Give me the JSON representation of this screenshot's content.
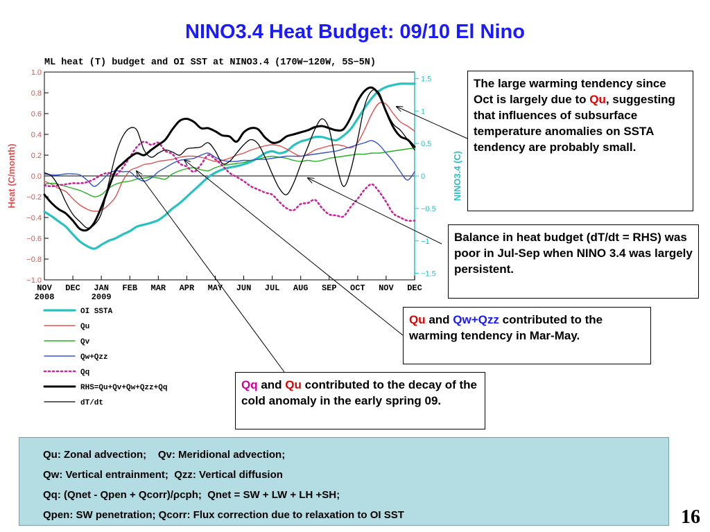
{
  "slide": {
    "title": "NINO3.4 Heat Budget: 09/10 El Nino",
    "page_number": "16"
  },
  "annotations": {
    "box1": {
      "pre": "The large warming tendency since Oct is largely due to ",
      "qu": "Qu",
      "post": ", suggesting that influences of subsurface temperature anomalies on SSTA tendency are probably small."
    },
    "box2": "Balance in heat budget (dT/dt = RHS) was poor in Jul-Sep when NINO 3.4 was largely persistent.",
    "box3": {
      "qu": "Qu",
      "and": " and ",
      "qw": "Qw+Qzz",
      "post": " contributed to the warming tendency in Mar-May."
    },
    "box4": {
      "qq": "Qq",
      "and": " and ",
      "qu": "Qu",
      "post": " contributed to the decay of the cold anomaly in the early spring 09."
    }
  },
  "definitions": [
    "Qu: Zonal advection;    Qv: Meridional advection;",
    "Qw: Vertical entrainment;  Qzz: Vertical diffusion",
    "Qq: (Qnet - Qpen + Qcorr)/ρcph;  Qnet = SW + LW + LH +SH;",
    "Qpen: SW penetration; Qcorr: Flux correction due to relaxation to OI SST"
  ],
  "colors": {
    "oi_ssta": "#26c2c2",
    "qu": "#e05050",
    "qv": "#22b022",
    "qwqzz": "#3355cc",
    "qq": "#cc2299",
    "rhs": "#000000",
    "dtdt": "#000000",
    "title_blue": "#1a1aff",
    "defs_bg": "#b3dde3"
  },
  "chart_data": {
    "type": "line",
    "title": "ML heat (T) budget and OI SST at NINO3.4 (170W−120W, 5S−5N)",
    "ylabel": "Heat (C/month)",
    "y2label": "NINO3.4 (C)",
    "ylim": [
      -1.0,
      1.0
    ],
    "y2lim": [
      -1.6,
      1.6
    ],
    "yticks": [
      "1.0",
      "0.8",
      "0.6",
      "0.4",
      "0.2",
      "0.0",
      "−0.2",
      "−0.4",
      "−0.6",
      "−0.8",
      "−1.0"
    ],
    "y2ticks": [
      "1.5",
      "1",
      "0.5",
      "0",
      "−0.5",
      "−1",
      "−1.5"
    ],
    "y2tick_values": [
      1.5,
      1,
      0.5,
      0,
      -0.5,
      -1,
      -1.5
    ],
    "xticks": [
      "NOV",
      "DEC",
      "JAN",
      "FEB",
      "MAR",
      "APR",
      "MAY",
      "JUN",
      "JUL",
      "AUG",
      "SEP",
      "OCT",
      "NOV",
      "DEC"
    ],
    "xticks_year": [
      "2008",
      "",
      "2009",
      "",
      "",
      "",
      "",
      "",
      "",
      "",
      "",
      "",
      "",
      ""
    ],
    "x_months": [
      0,
      0.25,
      0.5,
      0.75,
      1,
      1.25,
      1.5,
      1.75,
      2,
      2.25,
      2.5,
      2.75,
      3,
      3.25,
      3.5,
      3.75,
      4,
      4.25,
      4.5,
      4.75,
      5,
      5.25,
      5.5,
      5.75,
      6,
      6.25,
      6.5,
      6.75,
      7,
      7.25,
      7.5,
      7.75,
      8,
      8.25,
      8.5,
      8.75,
      9,
      9.25,
      9.5,
      9.75,
      10,
      10.25,
      10.5,
      10.75,
      11,
      11.25,
      11.5,
      11.75,
      12,
      12.25,
      12.5,
      12.75,
      13
    ],
    "series": [
      {
        "name": "OI SSTA",
        "axis": "right",
        "style": "thick",
        "values": [
          -0.55,
          -0.62,
          -0.7,
          -0.78,
          -0.9,
          -1.01,
          -1.08,
          -1.12,
          -1.06,
          -1.0,
          -0.96,
          -0.9,
          -0.85,
          -0.78,
          -0.75,
          -0.72,
          -0.68,
          -0.6,
          -0.5,
          -0.42,
          -0.32,
          -0.22,
          -0.12,
          -0.02,
          0.05,
          0.1,
          0.13,
          0.15,
          0.18,
          0.22,
          0.28,
          0.35,
          0.38,
          0.35,
          0.38,
          0.47,
          0.53,
          0.56,
          0.6,
          0.6,
          0.57,
          0.55,
          0.62,
          0.72,
          0.88,
          1.05,
          1.2,
          1.31,
          1.37,
          1.4,
          1.42,
          1.42,
          1.42
        ]
      },
      {
        "name": "Qu",
        "axis": "left",
        "style": "thin",
        "values": [
          -0.05,
          -0.08,
          -0.12,
          -0.15,
          -0.22,
          -0.28,
          -0.32,
          -0.34,
          -0.33,
          -0.28,
          -0.2,
          -0.05,
          0.05,
          0.08,
          0.11,
          0.12,
          0.14,
          0.15,
          0.16,
          0.18,
          0.19,
          0.19,
          0.18,
          0.16,
          0.14,
          0.15,
          0.17,
          0.2,
          0.22,
          0.25,
          0.27,
          0.29,
          0.3,
          0.29,
          0.26,
          0.22,
          0.19,
          0.21,
          0.25,
          0.27,
          0.29,
          0.3,
          0.29,
          0.27,
          0.32,
          0.45,
          0.6,
          0.7,
          0.69,
          0.6,
          0.52,
          0.48,
          0.43
        ]
      },
      {
        "name": "Qv",
        "axis": "left",
        "style": "thin",
        "values": [
          -0.08,
          -0.07,
          -0.08,
          -0.1,
          -0.12,
          -0.14,
          -0.17,
          -0.2,
          -0.18,
          -0.12,
          -0.08,
          -0.06,
          -0.05,
          -0.03,
          -0.02,
          -0.01,
          -0.02,
          -0.03,
          0.02,
          0.05,
          0.07,
          0.08,
          0.06,
          0.05,
          0.08,
          0.1,
          0.11,
          0.12,
          0.13,
          0.15,
          0.16,
          0.18,
          0.19,
          0.18,
          0.17,
          0.15,
          0.14,
          0.15,
          0.14,
          0.15,
          0.17,
          0.18,
          0.19,
          0.2,
          0.21,
          0.21,
          0.22,
          0.22,
          0.23,
          0.24,
          0.25,
          0.26,
          0.27
        ]
      },
      {
        "name": "Qw+Qzz",
        "axis": "left",
        "style": "thin",
        "values": [
          0.02,
          0.01,
          0.01,
          0.02,
          0.02,
          0.01,
          -0.04,
          -0.1,
          -0.05,
          0.02,
          0.05,
          0.04,
          0.04,
          -0.02,
          -0.05,
          -0.02,
          0.04,
          0.08,
          0.12,
          0.15,
          0.16,
          0.17,
          0.2,
          0.22,
          0.18,
          0.15,
          0.14,
          0.14,
          0.15,
          0.15,
          0.16,
          0.16,
          0.17,
          0.18,
          0.19,
          0.19,
          0.19,
          0.2,
          0.21,
          0.22,
          0.23,
          0.24,
          0.26,
          0.28,
          0.3,
          0.32,
          0.34,
          0.3,
          0.22,
          0.14,
          0.04,
          -0.04,
          0.04
        ]
      },
      {
        "name": "Qq",
        "axis": "left",
        "style": "dotted",
        "values": [
          -0.09,
          -0.1,
          -0.09,
          -0.08,
          -0.07,
          -0.07,
          -0.06,
          -0.03,
          0.01,
          0.03,
          0.01,
          0.08,
          0.18,
          0.28,
          0.33,
          0.3,
          0.32,
          0.24,
          0.21,
          0.12,
          0.09,
          0.04,
          0.11,
          0.2,
          0.16,
          0.1,
          0.03,
          -0.01,
          -0.05,
          -0.1,
          -0.13,
          -0.16,
          -0.18,
          -0.25,
          -0.31,
          -0.33,
          -0.27,
          -0.26,
          -0.23,
          -0.31,
          -0.37,
          -0.38,
          -0.39,
          -0.3,
          -0.22,
          -0.13,
          -0.08,
          -0.15,
          -0.25,
          -0.36,
          -0.4,
          -0.43,
          -0.43
        ]
      },
      {
        "name": "RHS=Qu+Qv+Qw+Qzz+Qq",
        "axis": "left",
        "style": "thickblack",
        "values": [
          -0.18,
          -0.26,
          -0.32,
          -0.36,
          -0.43,
          -0.51,
          -0.52,
          -0.45,
          -0.3,
          -0.12,
          0.05,
          0.12,
          0.18,
          0.22,
          0.2,
          0.25,
          0.3,
          0.35,
          0.45,
          0.53,
          0.55,
          0.52,
          0.46,
          0.46,
          0.43,
          0.39,
          0.38,
          0.33,
          0.42,
          0.46,
          0.45,
          0.37,
          0.32,
          0.33,
          0.38,
          0.4,
          0.42,
          0.44,
          0.47,
          0.48,
          0.46,
          0.44,
          0.45,
          0.56,
          0.72,
          0.82,
          0.85,
          0.78,
          0.62,
          0.47,
          0.38,
          0.35,
          0.28
        ]
      },
      {
        "name": "dT/dt",
        "axis": "left",
        "style": "thinblack",
        "values": [
          0.03,
          0.0,
          -0.1,
          -0.25,
          -0.37,
          -0.44,
          -0.5,
          -0.47,
          -0.36,
          -0.08,
          0.2,
          0.38,
          0.46,
          0.44,
          0.25,
          0.18,
          0.22,
          0.25,
          0.23,
          0.2,
          0.26,
          0.27,
          0.28,
          0.32,
          0.24,
          0.12,
          0.14,
          0.22,
          0.3,
          0.35,
          0.31,
          0.18,
          0.02,
          -0.12,
          -0.18,
          -0.07,
          0.11,
          0.28,
          0.45,
          0.55,
          0.45,
          0.12,
          -0.1,
          0.05,
          0.35,
          0.68,
          0.82,
          0.8,
          0.63,
          0.5,
          0.44,
          0.35,
          0.25
        ]
      }
    ],
    "legend": [
      {
        "label": "OI SSTA",
        "key": "oi_ssta",
        "style": "thick"
      },
      {
        "label": "Qu",
        "key": "qu",
        "style": "thin"
      },
      {
        "label": "Qv",
        "key": "qv",
        "style": "thin"
      },
      {
        "label": "Qw+Qzz",
        "key": "qwqzz",
        "style": "thin"
      },
      {
        "label": "Qq",
        "key": "qq",
        "style": "dotted"
      },
      {
        "label": "RHS=Qu+Qv+Qw+Qzz+Qq",
        "key": "rhs",
        "style": "thickblack"
      },
      {
        "label": "dT/dt",
        "key": "dtdt",
        "style": "thinblack"
      }
    ],
    "legend_placement": "below-left",
    "zero_line": true,
    "grid": false
  }
}
